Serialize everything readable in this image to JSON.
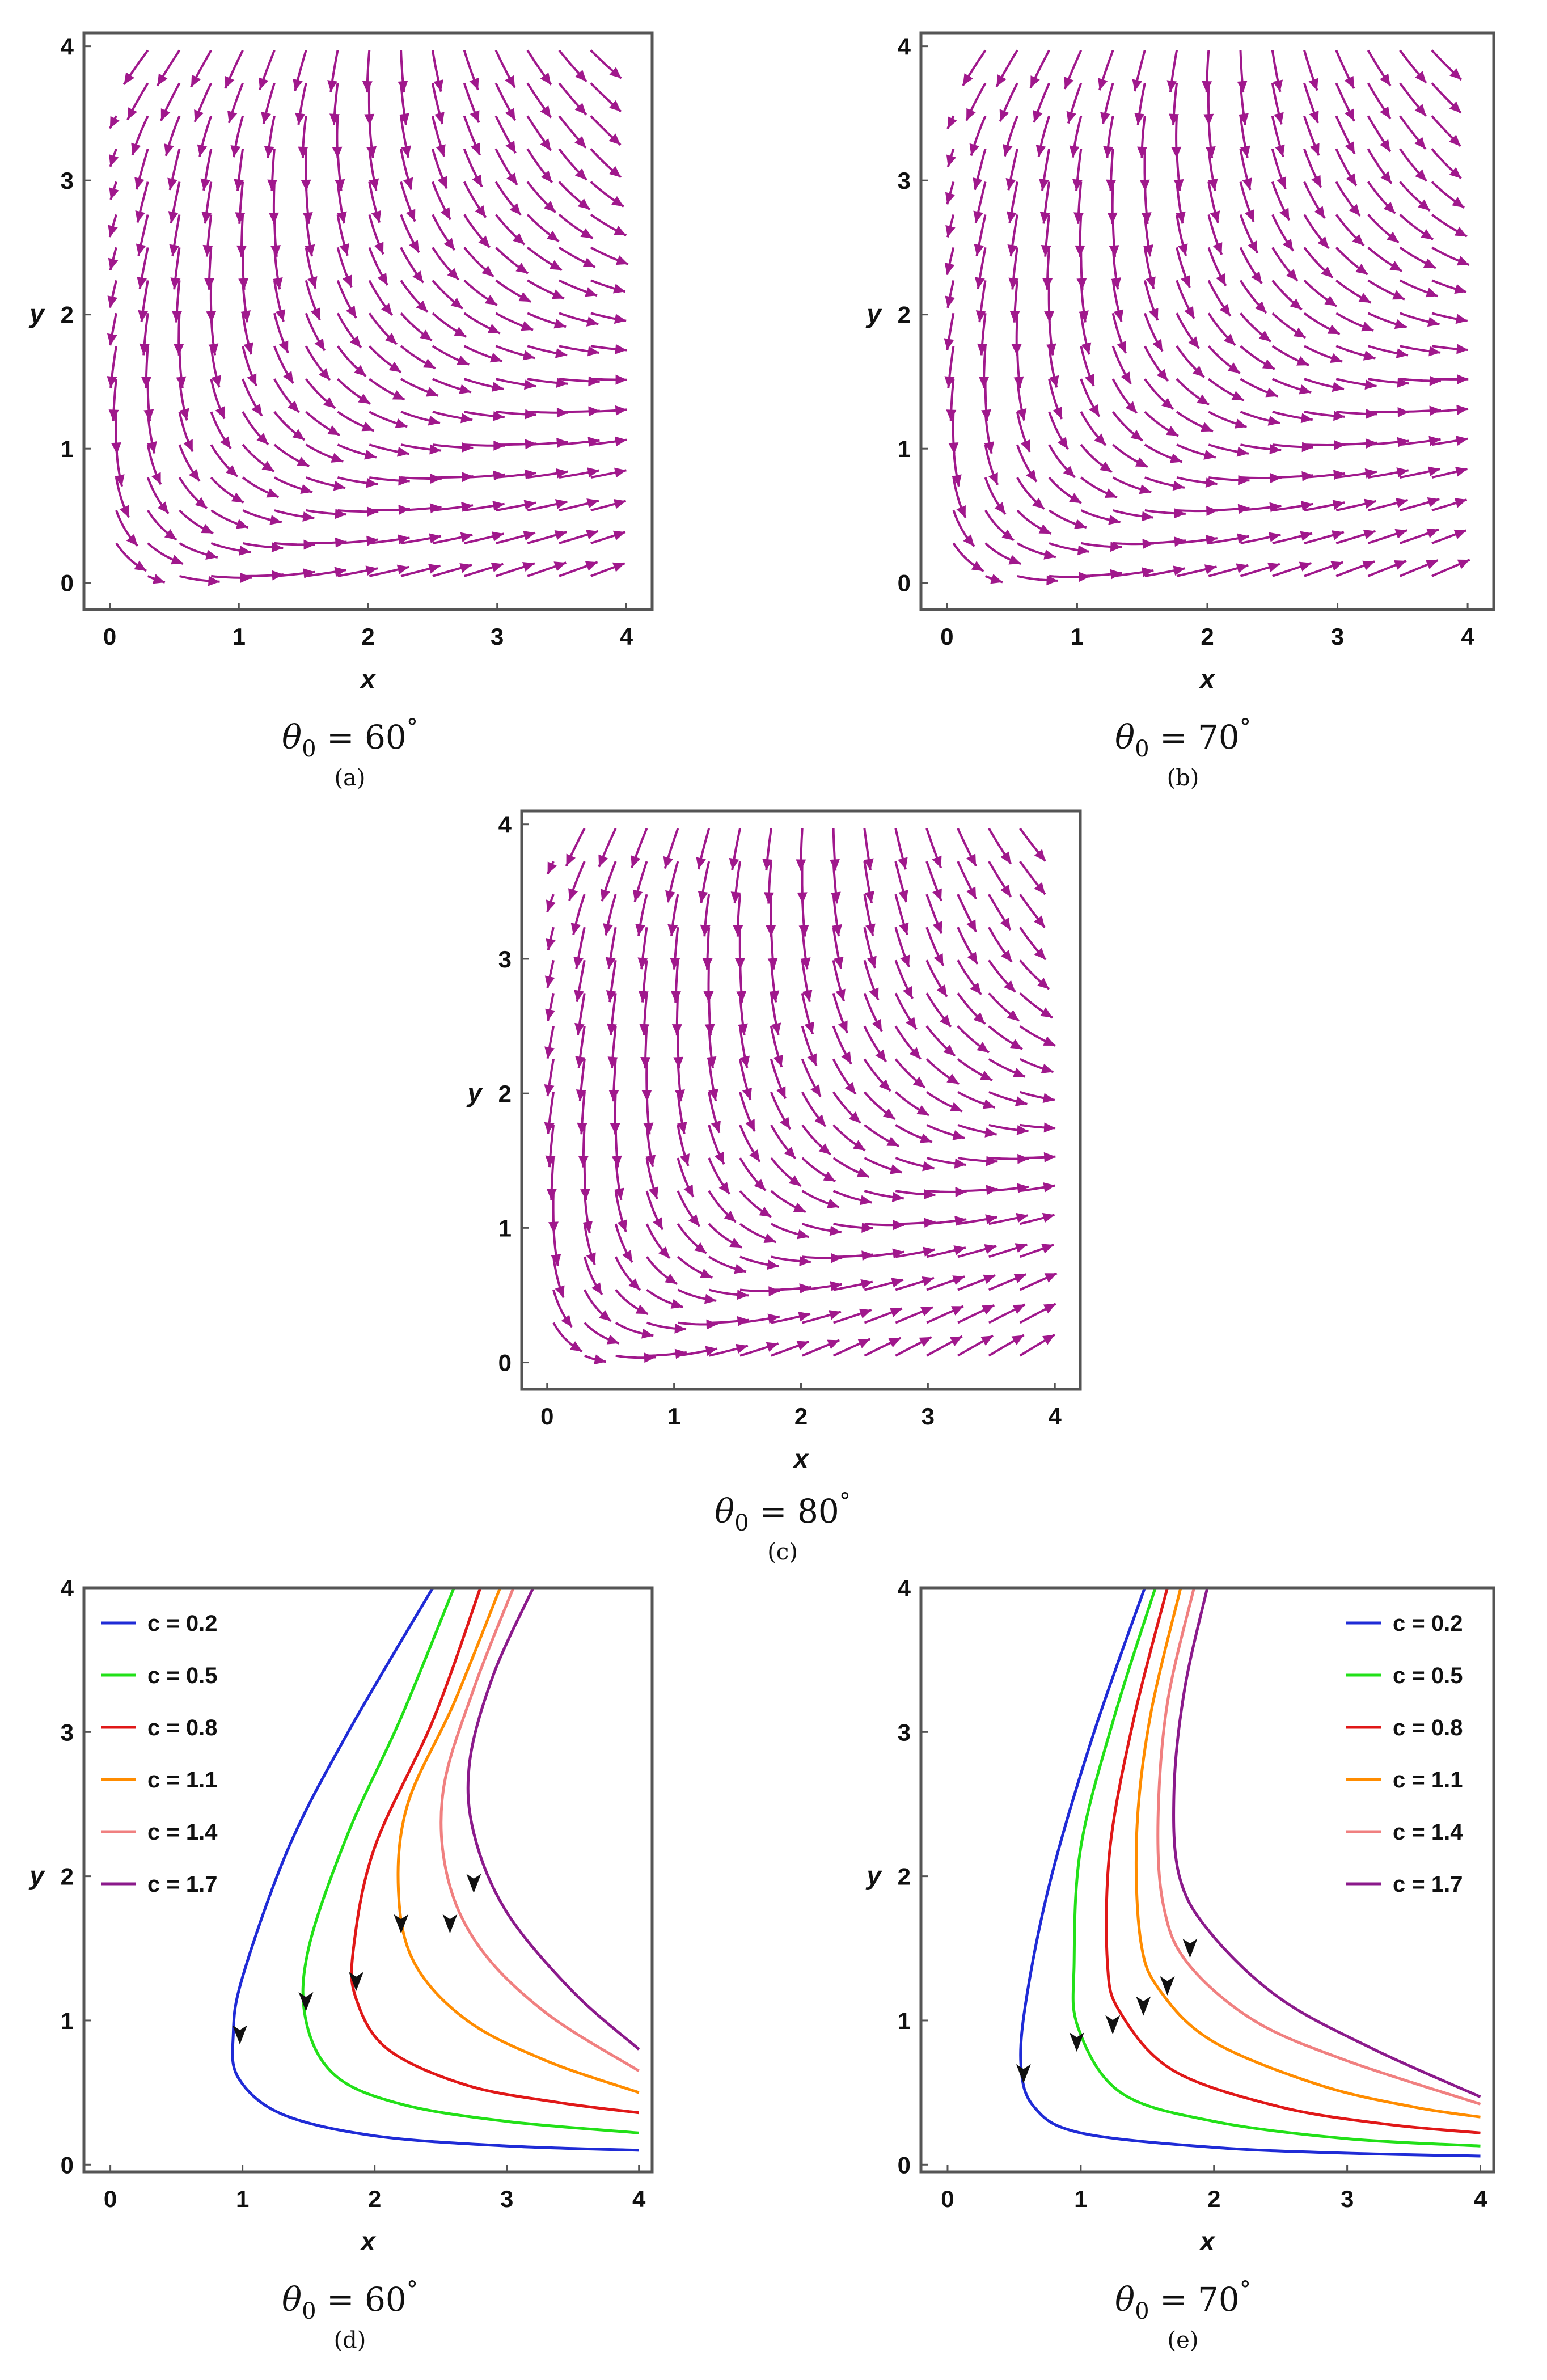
{
  "colors": {
    "stream": "#a0188c",
    "frame": "#555555",
    "arrow": "#111111"
  },
  "panels": [
    {
      "id": "a",
      "caption_symbol": "θ",
      "caption_subscript": "0",
      "caption_value": " = 60",
      "caption_degree": "°",
      "sublabel": "(a)",
      "chart_data": {
        "type": "streamplot",
        "xlabel": "x",
        "ylabel": "y",
        "xlim": [
          -0.2,
          4.2
        ],
        "ylim": [
          -0.2,
          4.1
        ],
        "xticks": [
          "0",
          "1",
          "2",
          "3",
          "4"
        ],
        "yticks": [
          "0",
          "1",
          "2",
          "3",
          "4"
        ],
        "theta0_deg": 60,
        "grid": false
      }
    },
    {
      "id": "b",
      "caption_symbol": "θ",
      "caption_subscript": "0",
      "caption_value": " = 70",
      "caption_degree": "°",
      "sublabel": "(b)",
      "chart_data": {
        "type": "streamplot",
        "xlabel": "x",
        "ylabel": "y",
        "xlim": [
          -0.2,
          4.2
        ],
        "ylim": [
          -0.2,
          4.1
        ],
        "xticks": [
          "0",
          "1",
          "2",
          "3",
          "4"
        ],
        "yticks": [
          "0",
          "1",
          "2",
          "3",
          "4"
        ],
        "theta0_deg": 70,
        "grid": false
      }
    },
    {
      "id": "c",
      "caption_symbol": "θ",
      "caption_subscript": "0",
      "caption_value": " = 80",
      "caption_degree": "°",
      "sublabel": "(c)",
      "chart_data": {
        "type": "streamplot",
        "xlabel": "x",
        "ylabel": "y",
        "xlim": [
          -0.2,
          4.2
        ],
        "ylim": [
          -0.2,
          4.1
        ],
        "xticks": [
          "0",
          "1",
          "2",
          "3",
          "4"
        ],
        "yticks": [
          "0",
          "1",
          "2",
          "3",
          "4"
        ],
        "theta0_deg": 80,
        "grid": false
      }
    },
    {
      "id": "d",
      "caption_symbol": "θ",
      "caption_subscript": "0",
      "caption_value": " = 60",
      "caption_degree": "°",
      "sublabel": "(d)",
      "chart_data": {
        "type": "line",
        "xlabel": "x",
        "ylabel": "y",
        "xlim": [
          -0.2,
          4.1
        ],
        "ylim": [
          -0.05,
          4.0
        ],
        "xticks": [
          "0",
          "1",
          "2",
          "3",
          "4"
        ],
        "yticks": [
          "0",
          "1",
          "2",
          "3",
          "4"
        ],
        "legend_position": "top-left",
        "grid": false,
        "series": [
          {
            "name": "c = 0.2",
            "color": "#1f2bd6",
            "points": [
              [
                2.44,
                4.0
              ],
              [
                1.8,
                3.0
              ],
              [
                1.35,
                2.2
              ],
              [
                1.0,
                1.3
              ],
              [
                0.93,
                0.9
              ],
              [
                0.97,
                0.6
              ],
              [
                1.3,
                0.35
              ],
              [
                2.0,
                0.2
              ],
              [
                3.0,
                0.13
              ],
              [
                4.0,
                0.1
              ]
            ],
            "arrow": [
              0.98,
              0.9
            ]
          },
          {
            "name": "c = 0.5",
            "color": "#22e018",
            "points": [
              [
                2.6,
                4.0
              ],
              [
                2.2,
                3.1
              ],
              [
                1.8,
                2.3
              ],
              [
                1.5,
                1.5
              ],
              [
                1.48,
                1.0
              ],
              [
                1.7,
                0.62
              ],
              [
                2.2,
                0.42
              ],
              [
                3.0,
                0.3
              ],
              [
                4.0,
                0.22
              ]
            ],
            "arrow": [
              1.48,
              1.13
            ]
          },
          {
            "name": "c = 0.8",
            "color": "#e01818",
            "points": [
              [
                2.8,
                4.0
              ],
              [
                2.45,
                3.1
              ],
              [
                2.0,
                2.2
              ],
              [
                1.84,
                1.5
              ],
              [
                1.86,
                1.15
              ],
              [
                2.1,
                0.8
              ],
              [
                2.7,
                0.55
              ],
              [
                3.4,
                0.43
              ],
              [
                4.0,
                0.36
              ]
            ],
            "arrow": [
              1.86,
              1.27
            ]
          },
          {
            "name": "c = 1.1",
            "color": "#ff8c00",
            "points": [
              [
                2.95,
                4.0
              ],
              [
                2.6,
                3.2
              ],
              [
                2.25,
                2.5
              ],
              [
                2.18,
                1.9
              ],
              [
                2.3,
                1.4
              ],
              [
                2.7,
                1.0
              ],
              [
                3.3,
                0.72
              ],
              [
                4.0,
                0.5
              ]
            ],
            "arrow": [
              2.2,
              1.67
            ]
          },
          {
            "name": "c = 1.4",
            "color": "#f08080",
            "points": [
              [
                3.05,
                4.0
              ],
              [
                2.75,
                3.3
              ],
              [
                2.52,
                2.6
              ],
              [
                2.55,
                2.0
              ],
              [
                2.8,
                1.5
              ],
              [
                3.3,
                1.05
              ],
              [
                4.0,
                0.65
              ]
            ],
            "arrow": [
              2.57,
              1.67
            ]
          },
          {
            "name": "c = 1.7",
            "color": "#8b1a8b",
            "points": [
              [
                3.2,
                4.0
              ],
              [
                2.9,
                3.4
              ],
              [
                2.72,
                2.8
              ],
              [
                2.75,
                2.3
              ],
              [
                3.0,
                1.75
              ],
              [
                3.5,
                1.2
              ],
              [
                4.0,
                0.8
              ]
            ],
            "arrow": [
              2.75,
              1.95
            ]
          }
        ]
      }
    },
    {
      "id": "e",
      "caption_symbol": "θ",
      "caption_subscript": "0",
      "caption_value": " = 70",
      "caption_degree": "°",
      "sublabel": "(e)",
      "chart_data": {
        "type": "line",
        "xlabel": "x",
        "ylabel": "y",
        "xlim": [
          -0.2,
          4.1
        ],
        "ylim": [
          -0.05,
          4.0
        ],
        "xticks": [
          "0",
          "1",
          "2",
          "3",
          "4"
        ],
        "yticks": [
          "0",
          "1",
          "2",
          "3",
          "4"
        ],
        "legend_position": "top-right",
        "grid": false,
        "series": [
          {
            "name": "c = 0.2",
            "color": "#1f2bd6",
            "points": [
              [
                1.48,
                4.0
              ],
              [
                1.1,
                3.0
              ],
              [
                0.78,
                2.0
              ],
              [
                0.6,
                1.2
              ],
              [
                0.55,
                0.7
              ],
              [
                0.65,
                0.4
              ],
              [
                1.0,
                0.22
              ],
              [
                2.0,
                0.12
              ],
              [
                3.0,
                0.08
              ],
              [
                4.0,
                0.06
              ]
            ],
            "arrow": [
              0.57,
              0.63
            ]
          },
          {
            "name": "c = 0.5",
            "color": "#22e018",
            "points": [
              [
                1.56,
                4.0
              ],
              [
                1.25,
                3.1
              ],
              [
                1.0,
                2.2
              ],
              [
                0.95,
                1.4
              ],
              [
                0.98,
                0.95
              ],
              [
                1.3,
                0.5
              ],
              [
                2.0,
                0.3
              ],
              [
                3.0,
                0.18
              ],
              [
                4.0,
                0.13
              ]
            ],
            "arrow": [
              0.97,
              0.85
            ]
          },
          {
            "name": "c = 0.8",
            "color": "#e01818",
            "points": [
              [
                1.65,
                4.0
              ],
              [
                1.4,
                3.1
              ],
              [
                1.22,
                2.2
              ],
              [
                1.2,
                1.4
              ],
              [
                1.3,
                1.05
              ],
              [
                1.7,
                0.65
              ],
              [
                2.5,
                0.4
              ],
              [
                3.3,
                0.28
              ],
              [
                4.0,
                0.22
              ]
            ],
            "arrow": [
              1.24,
              0.97
            ]
          },
          {
            "name": "c = 1.1",
            "color": "#ff8c00",
            "points": [
              [
                1.75,
                4.0
              ],
              [
                1.52,
                3.1
              ],
              [
                1.42,
                2.3
              ],
              [
                1.45,
                1.55
              ],
              [
                1.6,
                1.2
              ],
              [
                2.0,
                0.85
              ],
              [
                2.8,
                0.55
              ],
              [
                3.5,
                0.4
              ],
              [
                4.0,
                0.33
              ]
            ],
            "arrow": [
              1.47,
              1.1
            ]
          },
          {
            "name": "c = 1.4",
            "color": "#f08080",
            "points": [
              [
                1.85,
                4.0
              ],
              [
                1.65,
                3.2
              ],
              [
                1.58,
                2.4
              ],
              [
                1.62,
                1.8
              ],
              [
                1.8,
                1.4
              ],
              [
                2.3,
                1.0
              ],
              [
                3.0,
                0.72
              ],
              [
                4.0,
                0.42
              ]
            ],
            "arrow": [
              1.65,
              1.24
            ]
          },
          {
            "name": "c = 1.7",
            "color": "#8b1a8b",
            "points": [
              [
                1.95,
                4.0
              ],
              [
                1.78,
                3.3
              ],
              [
                1.7,
                2.6
              ],
              [
                1.74,
                2.0
              ],
              [
                1.98,
                1.6
              ],
              [
                2.5,
                1.15
              ],
              [
                3.2,
                0.8
              ],
              [
                4.0,
                0.47
              ]
            ],
            "arrow": [
              1.82,
              1.5
            ]
          }
        ]
      }
    }
  ]
}
